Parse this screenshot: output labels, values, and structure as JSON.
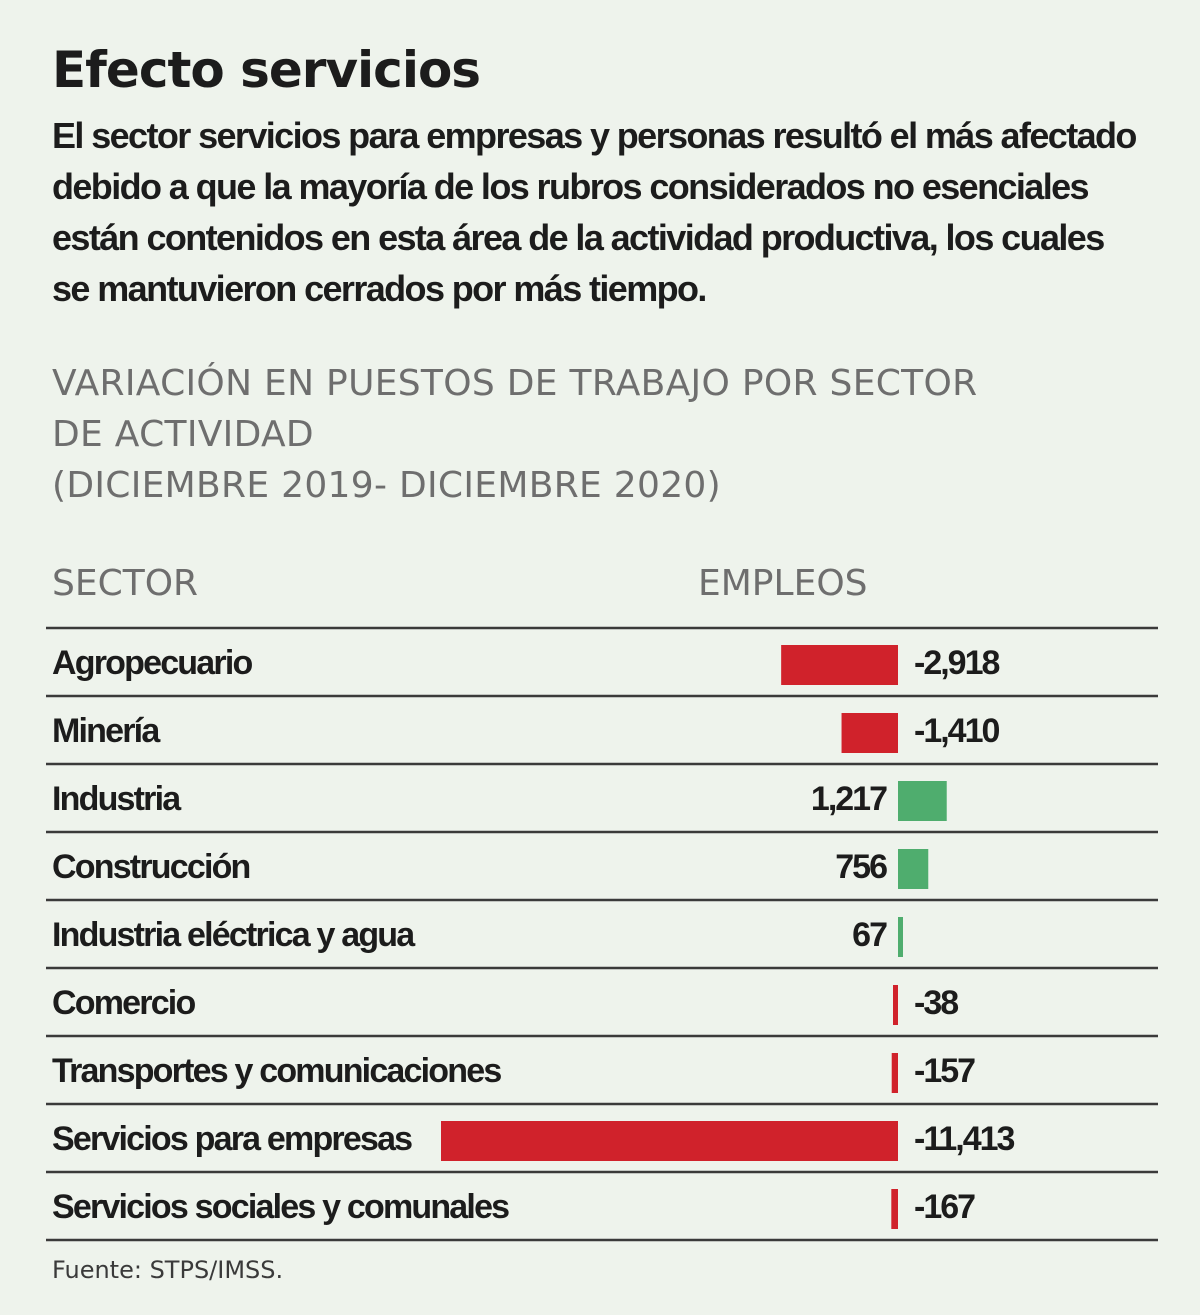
{
  "title": "Efecto servicios",
  "intro": "El sector servicios para empresas y personas resultó el más afectado debido a que la mayoría de los rubros considerados no esenciales están contenidos en esta área de la actividad productiva, los cuales se mantuvieron cerrados por más tiempo.",
  "subtitle_lines": [
    "VARIACIÓN EN PUESTOS DE TRABAJO POR SECTOR",
    "DE ACTIVIDAD",
    "(DICIEMBRE 2019- DICIEMBRE 2020)"
  ],
  "headers": {
    "sector": "SECTOR",
    "empleos": "EMPLEOS"
  },
  "source": "Fuente: STPS/IMSS.",
  "colors": {
    "negative": "#d0222b",
    "positive": "#4fad6e",
    "rule": "#3a3a3a"
  },
  "chart_data": {
    "type": "bar",
    "orientation": "horizontal",
    "categories": [
      "Agropecuario",
      "Minería",
      "Industria",
      "Construcción",
      "Industria eléctrica y agua",
      "Comercio",
      "Transportes y comunicaciones",
      "Servicios para empresas",
      "Servicios sociales y comunales"
    ],
    "values": [
      -2918,
      -1410,
      1217,
      756,
      67,
      -38,
      -157,
      -11413,
      -167
    ],
    "value_labels": [
      "-2,918",
      "-1,410",
      "1,217",
      "756",
      "67",
      "-38",
      "-157",
      "-11,413",
      "-167"
    ],
    "title": "Efecto servicios",
    "xlabel": "EMPLEOS",
    "ylabel": "SECTOR",
    "grid": false
  }
}
